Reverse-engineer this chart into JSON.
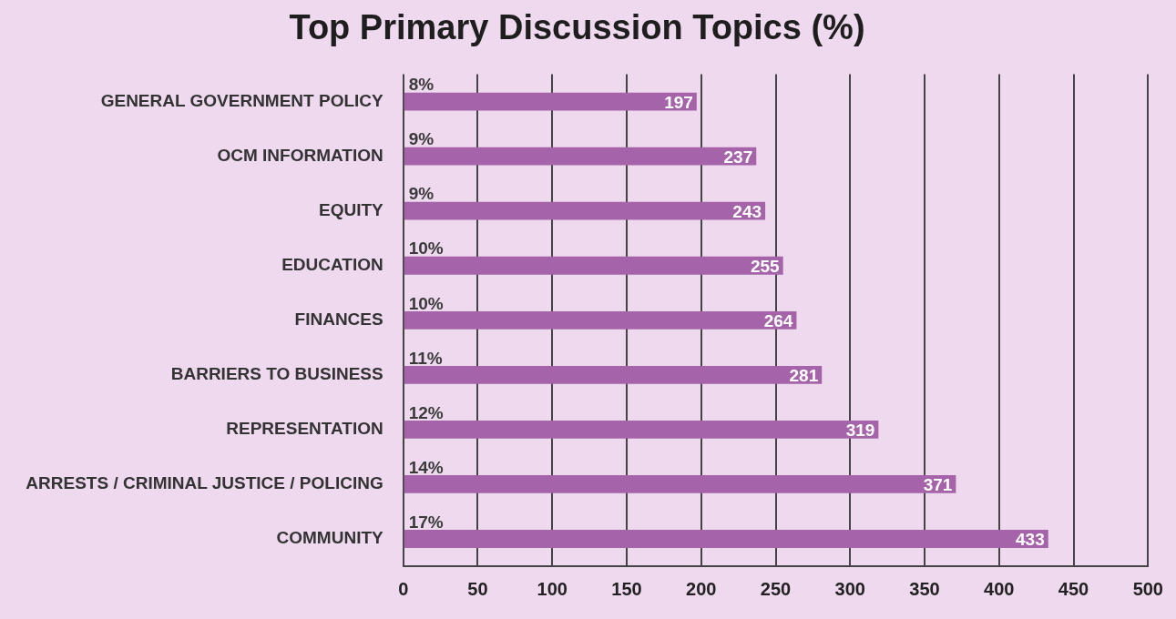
{
  "chart_data": {
    "type": "bar",
    "orientation": "horizontal",
    "title": "Top Primary Discussion Topics (%)",
    "categories": [
      "GENERAL GOVERNMENT POLICY",
      "OCM INFORMATION",
      "EQUITY",
      "EDUCATION",
      "FINANCES",
      "BARRIERS TO BUSINESS",
      "REPRESENTATION",
      "ARRESTS / CRIMINAL JUSTICE / POLICING",
      "COMMUNITY"
    ],
    "values": [
      197,
      237,
      243,
      255,
      264,
      281,
      319,
      371,
      433
    ],
    "color": "#a563a9",
    "xlim": [
      0,
      500
    ],
    "xticks": [
      0,
      50,
      100,
      150,
      200,
      250,
      300,
      350,
      400,
      450,
      500
    ],
    "grid": "x",
    "data_labels": true,
    "annotations": [
      "8%",
      "9%",
      "9%",
      "10%",
      "10%",
      "11%",
      "12%",
      "14%",
      "17%"
    ]
  }
}
